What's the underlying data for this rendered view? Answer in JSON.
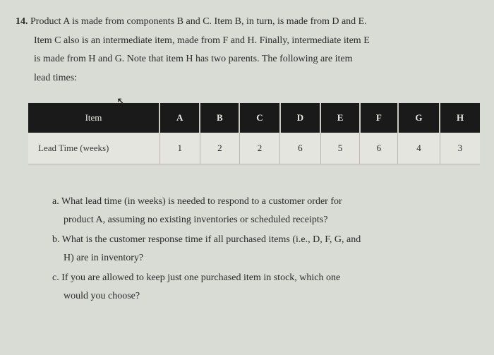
{
  "question": {
    "number": "14.",
    "line1": "Product A is made from components B and C. Item B, in turn, is made from D and E.",
    "line2": "Item C also is an intermediate item, made from F and H. Finally, intermediate item E",
    "line3": "is made from H and G. Note that item H has two parents. The following are item",
    "line4": "lead times:"
  },
  "table": {
    "header_label": "Item",
    "row_label": "Lead Time (weeks)",
    "columns": [
      "A",
      "B",
      "C",
      "D",
      "E",
      "F",
      "G",
      "H"
    ],
    "values": [
      "1",
      "2",
      "2",
      "6",
      "5",
      "6",
      "4",
      "3"
    ],
    "header_bg": "#1a1a1a",
    "header_fg": "#e8e8e4",
    "cell_bg": "#e3e5de",
    "border_color": "#b8b6ae"
  },
  "subquestions": {
    "a": {
      "label": "a.",
      "line1": "What lead time (in weeks) is needed to respond to a customer order for",
      "line2": "product A, assuming no existing inventories or scheduled receipts?"
    },
    "b": {
      "label": "b.",
      "line1": "What is the customer response time if all purchased items (i.e., D, F, G, and",
      "line2": "H) are in inventory?"
    },
    "c": {
      "label": "c.",
      "line1": "If you are allowed to keep just one purchased item in stock, which one",
      "line2": "would you choose?"
    }
  },
  "page_bg": "#d8dcd5"
}
